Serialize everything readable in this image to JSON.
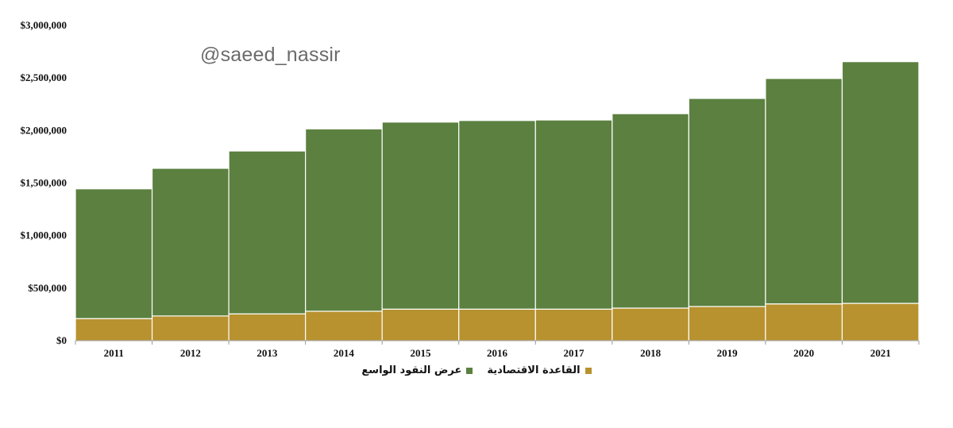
{
  "watermark": "@saeed_nassir",
  "chart_data": {
    "type": "bar",
    "stacked": true,
    "categories": [
      "2011",
      "2012",
      "2013",
      "2014",
      "2015",
      "2016",
      "2017",
      "2018",
      "2019",
      "2020",
      "2021"
    ],
    "series": [
      {
        "name": "القاعدة الاقتصادية",
        "color": "#b8922f",
        "values": [
          210000,
          235000,
          255000,
          280000,
          300000,
          300000,
          300000,
          310000,
          325000,
          350000,
          355000
        ]
      },
      {
        "name": "عرض النقود الواسع",
        "color": "#5b8040",
        "values": [
          1235000,
          1405000,
          1550000,
          1735000,
          1780000,
          1795000,
          1800000,
          1850000,
          1980000,
          2145000,
          2300000
        ]
      }
    ],
    "ylim": [
      0,
      3000000
    ],
    "yticks": [
      0,
      500000,
      1000000,
      1500000,
      2000000,
      2500000,
      3000000
    ],
    "ytick_labels": [
      "$0",
      "$500,000",
      "$1,000,000",
      "$1,500,000",
      "$2,000,000",
      "$2,500,000",
      "$3,000,000"
    ],
    "title": "",
    "xlabel": "",
    "ylabel": "",
    "grid": false,
    "legend_position": "bottom"
  }
}
